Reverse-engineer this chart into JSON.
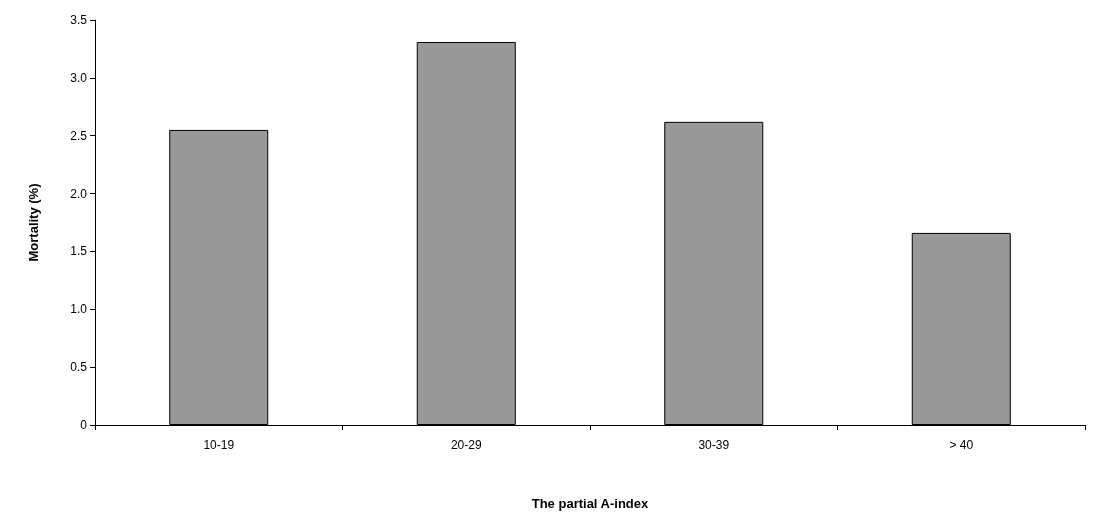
{
  "chart_data": {
    "type": "bar",
    "xlabel": "The partial A-index",
    "ylabel": "Mortality (%)",
    "categories": [
      "10-19",
      "20-29",
      "30-39",
      "> 40"
    ],
    "values": [
      2.55,
      3.31,
      2.62,
      1.66
    ],
    "color": "#999999",
    "ylim": [
      0,
      3.5
    ],
    "yticks": [
      0,
      0.5,
      {
        "value": 1,
        "label": "1.0"
      },
      1.5,
      {
        "value": 2,
        "label": "2.0"
      },
      2.5,
      {
        "value": 3,
        "label": "3.0"
      },
      3.5
    ],
    "grid": false
  }
}
